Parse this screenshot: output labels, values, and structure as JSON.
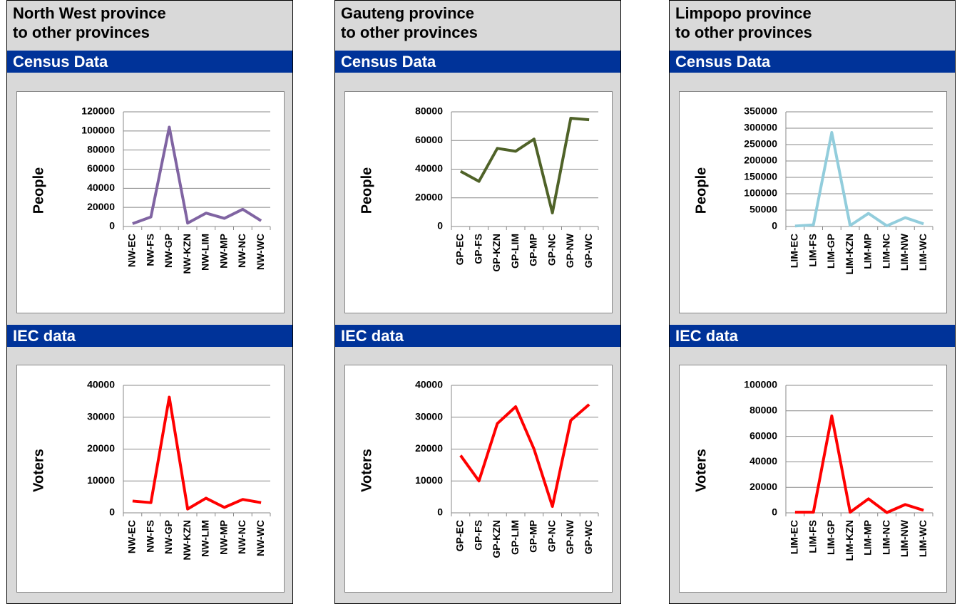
{
  "panels": [
    {
      "title_lines": [
        "North West province",
        "to other provinces"
      ]
    },
    {
      "title_lines": [
        "Gauteng province",
        "to other provinces"
      ]
    },
    {
      "title_lines": [
        "Limpopo province",
        "to other provinces"
      ]
    }
  ],
  "chart_data": [
    {
      "type": "line",
      "title": "Census Data",
      "y_label": "People",
      "color": "#8064a2",
      "categories": [
        "NW-EC",
        "NW-FS",
        "NW-GP",
        "NW-KZN",
        "NW-LIM",
        "NW-MP",
        "NW-NC",
        "NW-WC"
      ],
      "values": [
        3000,
        10000,
        104000,
        3500,
        14000,
        8500,
        18000,
        6000
      ],
      "ylim": [
        0,
        120000
      ],
      "yticks": [
        0,
        20000,
        40000,
        60000,
        80000,
        100000,
        120000
      ],
      "grid": true
    },
    {
      "type": "line",
      "title": "IEC data",
      "y_label": "Voters",
      "color": "#ff0000",
      "categories": [
        "NW-EC",
        "NW-FS",
        "NW-GP",
        "NW-KZN",
        "NW-LIM",
        "NW-MP",
        "NW-NC",
        "NW-WC"
      ],
      "values": [
        3700,
        3200,
        36300,
        1200,
        4600,
        1700,
        4200,
        3200
      ],
      "ylim": [
        0,
        40000
      ],
      "yticks": [
        0,
        10000,
        20000,
        30000,
        40000
      ],
      "grid": true
    },
    {
      "type": "line",
      "title": "Census Data",
      "y_label": "People",
      "color": "#4f6228",
      "categories": [
        "GP-EC",
        "GP-FS",
        "GP-KZN",
        "GP-LIM",
        "GP-MP",
        "GP-NC",
        "GP-NW",
        "GP-WC"
      ],
      "values": [
        38500,
        31500,
        54500,
        52500,
        61000,
        9500,
        75500,
        74500
      ],
      "ylim": [
        0,
        80000
      ],
      "yticks": [
        0,
        20000,
        40000,
        60000,
        80000
      ],
      "grid": true
    },
    {
      "type": "line",
      "title": "IEC data",
      "y_label": "Voters",
      "color": "#ff0000",
      "categories": [
        "GP-EC",
        "GP-FS",
        "GP-KZN",
        "GP-LIM",
        "GP-MP",
        "GP-NC",
        "GP-NW",
        "GP-WC"
      ],
      "values": [
        18000,
        10000,
        28000,
        33300,
        20000,
        2000,
        29000,
        34000
      ],
      "ylim": [
        0,
        40000
      ],
      "yticks": [
        0,
        10000,
        20000,
        30000,
        40000
      ],
      "grid": true
    },
    {
      "type": "line",
      "title": "Census Data",
      "y_label": "People",
      "color": "#92cddc",
      "categories": [
        "LIM-EC",
        "LIM-FS",
        "LIM-GP",
        "LIM-KZN",
        "LIM-MP",
        "LIM-NC",
        "LIM-NW",
        "LIM-WC"
      ],
      "values": [
        1500,
        5000,
        287000,
        3000,
        40000,
        2000,
        27000,
        8000
      ],
      "ylim": [
        0,
        350000
      ],
      "yticks": [
        0,
        50000,
        100000,
        150000,
        200000,
        250000,
        300000,
        350000
      ],
      "grid": true
    },
    {
      "type": "line",
      "title": "IEC data",
      "y_label": "Voters",
      "color": "#ff0000",
      "categories": [
        "LIM-EC",
        "LIM-FS",
        "LIM-GP",
        "LIM-KZN",
        "LIM-MP",
        "LIM-NC",
        "LIM-NW",
        "LIM-WC"
      ],
      "values": [
        500,
        500,
        76000,
        500,
        11000,
        200,
        6500,
        2000
      ],
      "ylim": [
        0,
        100000
      ],
      "yticks": [
        0,
        20000,
        40000,
        60000,
        80000,
        100000
      ],
      "grid": true
    }
  ]
}
